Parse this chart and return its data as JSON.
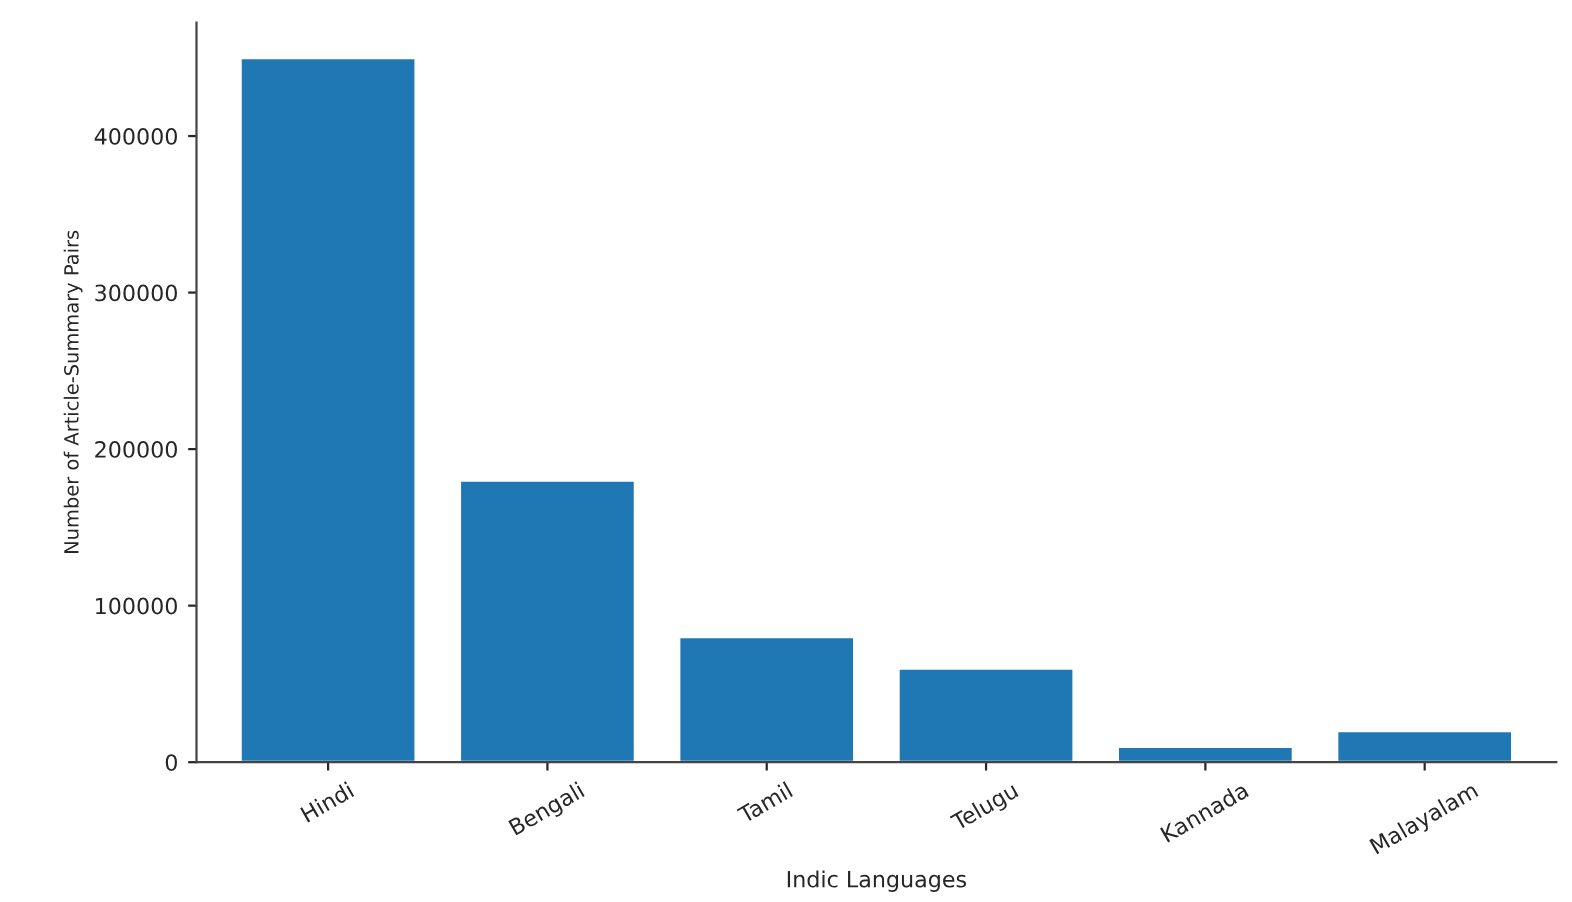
{
  "chart_data": {
    "type": "bar",
    "xlabel": "Indic Languages",
    "ylabel": "Number of Article-Summary Pairs",
    "categories": [
      "Hindi",
      "Bengali",
      "Tamil",
      "Telugu",
      "Kannada",
      "Malayalam"
    ],
    "values": [
      450000,
      180000,
      80000,
      60000,
      10000,
      20000
    ],
    "color": "#1f77b4",
    "ylim": [
      0,
      472500
    ],
    "yticks": [
      0,
      100000,
      200000,
      300000,
      400000
    ],
    "grid": false
  }
}
